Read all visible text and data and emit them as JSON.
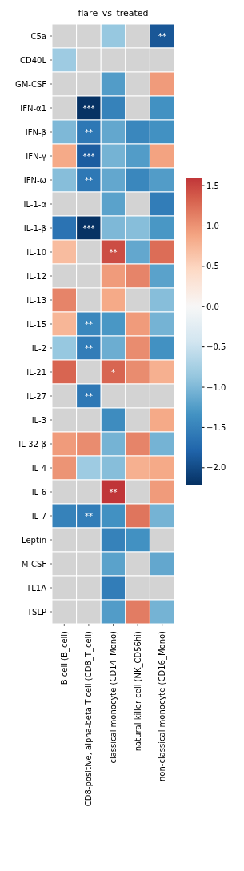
{
  "chart_data": {
    "type": "heatmap",
    "title": "flare_vs_treated",
    "categories": [
      "B cell (B_cell)",
      "CD8-positive, alpha-beta T cell (CD8_T_cell)",
      "classical monocyte (CD14_Mono)",
      "natural killer cell (NK_CD56hi)",
      "non-classical monocyte (CD16_Mono)"
    ],
    "y_categories": [
      "C5a",
      "CD40L",
      "GM-CSF",
      "IFN-α1",
      "IFN-β",
      "IFN-γ",
      "IFN-ω",
      "IL-1-α",
      "IL-1-β",
      "IL-10",
      "IL-12",
      "IL-13",
      "IL-15",
      "IL-2",
      "IL-21",
      "IL-27",
      "IL-3",
      "IL-32-β",
      "IL-4",
      "IL-6",
      "IL-7",
      "Leptin",
      "M-CSF",
      "TL1A",
      "TSLP"
    ],
    "cells": [
      [
        null,
        null,
        -0.85,
        null,
        -1.9
      ],
      [
        -0.8,
        null,
        null,
        null,
        null
      ],
      [
        null,
        null,
        -1.25,
        null,
        0.95
      ],
      [
        null,
        -2.2,
        -1.5,
        null,
        -1.35
      ],
      [
        -1.0,
        -1.6,
        -1.15,
        -1.45,
        -1.35
      ],
      [
        0.85,
        -1.85,
        -1.05,
        -1.25,
        0.9
      ],
      [
        -0.95,
        -1.6,
        -1.15,
        -1.45,
        -1.25
      ],
      [
        null,
        null,
        -1.2,
        null,
        -1.55
      ],
      [
        -1.65,
        -2.2,
        -1.0,
        -0.95,
        -1.3
      ],
      [
        0.7,
        null,
        1.45,
        -1.15,
        1.25
      ],
      [
        null,
        null,
        0.95,
        1.1,
        -1.2
      ],
      [
        1.1,
        null,
        0.85,
        null,
        -0.95
      ],
      [
        0.75,
        -1.45,
        -1.3,
        0.95,
        -1.05
      ],
      [
        -0.85,
        -1.55,
        -1.1,
        1.05,
        -1.35
      ],
      [
        1.3,
        null,
        1.3,
        1.05,
        0.8
      ],
      [
        null,
        -1.6,
        null,
        null,
        null
      ],
      [
        null,
        null,
        -1.4,
        null,
        0.85
      ],
      [
        0.95,
        1.05,
        -1.05,
        1.1,
        -1.05
      ],
      [
        1.0,
        -0.8,
        -0.95,
        0.8,
        0.85
      ],
      [
        null,
        null,
        1.6,
        null,
        0.95
      ],
      [
        -1.5,
        -1.55,
        -1.35,
        1.2,
        -1.05
      ],
      [
        null,
        null,
        -1.5,
        -1.35,
        null
      ],
      [
        null,
        null,
        -1.2,
        null,
        -1.15
      ],
      [
        null,
        null,
        -1.55,
        null,
        null
      ],
      [
        null,
        null,
        -1.25,
        1.15,
        -1.05
      ]
    ],
    "cell_labels": [
      [
        null,
        null,
        null,
        null,
        "**"
      ],
      [
        null,
        null,
        null,
        null,
        null
      ],
      [
        null,
        null,
        null,
        null,
        null
      ],
      [
        null,
        "***",
        null,
        null,
        null
      ],
      [
        null,
        "**",
        null,
        null,
        null
      ],
      [
        null,
        "***",
        null,
        null,
        null
      ],
      [
        null,
        "**",
        null,
        null,
        null
      ],
      [
        null,
        null,
        null,
        null,
        null
      ],
      [
        null,
        "***",
        null,
        null,
        null
      ],
      [
        null,
        null,
        "**",
        null,
        null
      ],
      [
        null,
        null,
        null,
        null,
        null
      ],
      [
        null,
        null,
        null,
        null,
        null
      ],
      [
        null,
        "**",
        null,
        null,
        null
      ],
      [
        null,
        "**",
        null,
        null,
        null
      ],
      [
        null,
        null,
        "*",
        null,
        null
      ],
      [
        null,
        "**",
        null,
        null,
        null
      ],
      [
        null,
        null,
        null,
        null,
        null
      ],
      [
        null,
        null,
        null,
        null,
        null
      ],
      [
        null,
        null,
        null,
        null,
        null
      ],
      [
        null,
        null,
        "**",
        null,
        null
      ],
      [
        null,
        "**",
        null,
        null,
        null
      ],
      [
        null,
        null,
        null,
        null,
        null
      ],
      [
        null,
        null,
        null,
        null,
        null
      ],
      [
        null,
        null,
        null,
        null,
        null
      ],
      [
        null,
        null,
        null,
        null,
        null
      ]
    ],
    "clim": [
      -2.22,
      1.6
    ],
    "cticks": [
      {
        "value": -2,
        "label": "−2.0"
      },
      {
        "value": -1.5,
        "label": "−1.5"
      },
      {
        "value": -1,
        "label": "−1.0"
      },
      {
        "value": -0.5,
        "label": "−0.5"
      },
      {
        "value": 0,
        "label": "0.0"
      },
      {
        "value": 0.5,
        "label": "0.5"
      },
      {
        "value": 1,
        "label": "1.0"
      },
      {
        "value": 1.5,
        "label": "1.5"
      }
    ]
  }
}
